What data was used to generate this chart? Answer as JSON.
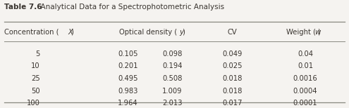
{
  "title_bold": "Table 7.6",
  "title_rest": "  Analytical Data for a Spectrophotometric Analysis",
  "bg_color": "#f5f3f0",
  "line_color": "#888880",
  "text_color": "#3a3530",
  "font_size": 7.2,
  "title_font_size": 7.5,
  "header_font_size": 7.2,
  "concentration": [
    "5",
    "10",
    "25",
    "50",
    "100"
  ],
  "od1": [
    "0.105",
    "0.201",
    "0.495",
    "0.983",
    "1.964"
  ],
  "od2": [
    "0.098",
    "0.194",
    "0.508",
    "1.009",
    "2.013"
  ],
  "cv": [
    "0.049",
    "0.025",
    "0.018",
    "0.018",
    "0.017"
  ],
  "weight": [
    "0.04",
    "0.01",
    "0.0016",
    "0.0004",
    "0.0001"
  ]
}
